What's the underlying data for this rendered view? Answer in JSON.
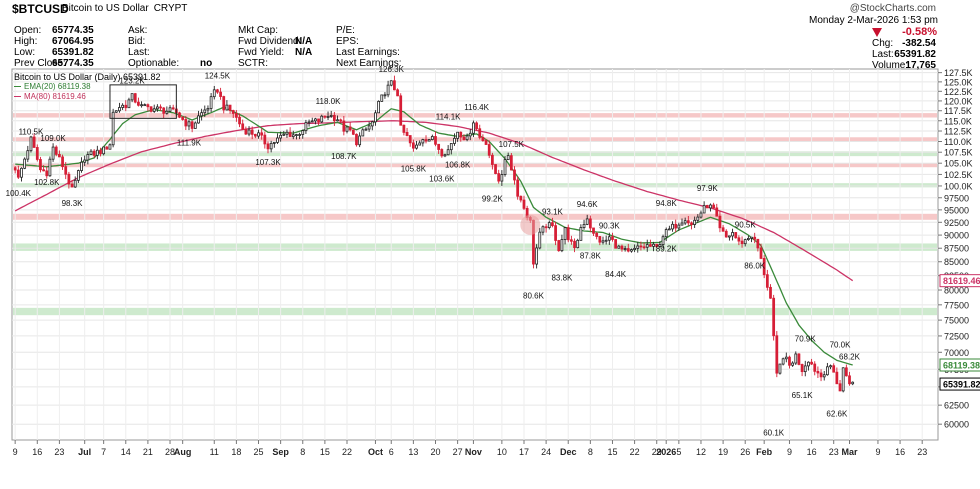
{
  "header": {
    "symbol": "$BTCUSD",
    "name": "Bitcoin to US Dollar",
    "exchange": "CRYPT",
    "watermark": "@StockCharts.com",
    "date": "Monday  2-Mar-2026  1:53 pm",
    "change_pct": "-0.58%",
    "col1": [
      {
        "label": "Open:",
        "value": "65774.35"
      },
      {
        "label": "High:",
        "value": "67064.95"
      },
      {
        "label": "Low:",
        "value": "65391.82"
      },
      {
        "label": "Prev Close:",
        "value": "65774.35"
      }
    ],
    "col2": [
      {
        "label": "Ask:",
        "value": ""
      },
      {
        "label": "Bid:",
        "value": ""
      },
      {
        "label": "Last:",
        "value": ""
      },
      {
        "label": "Optionable:",
        "value": "no"
      }
    ],
    "col3": [
      {
        "label": "Mkt Cap:",
        "value": ""
      },
      {
        "label": "Fwd Dividend:",
        "value": "N/A"
      },
      {
        "label": "Fwd Yield:",
        "value": "N/A"
      },
      {
        "label": "SCTR:",
        "value": ""
      }
    ],
    "col4": [
      {
        "label": "P/E:"
      },
      {
        "label": "EPS:"
      },
      {
        "label": "Last Earnings:"
      },
      {
        "label": "Next Earnings:"
      }
    ],
    "right": [
      {
        "label": "Chg:",
        "value": "-382.54"
      },
      {
        "label": "Last:",
        "value": "65391.82"
      },
      {
        "label": "Volume:",
        "value": "17,765"
      }
    ]
  },
  "legend": {
    "title": "Bitcoin to US Dollar (Daily) 65391.82",
    "ema": "EMA(20) 68119.38",
    "ma": "MA(80) 81619.46",
    "ema_color": "#3a8a3a",
    "ma_color": "#cc3366"
  },
  "chart_data": {
    "type": "candlestick",
    "title": "Bitcoin to US Dollar (Daily)",
    "ylim": [
      58000,
      128500
    ],
    "scale": "log",
    "y_ticks": [
      60000,
      62500,
      65000,
      67500,
      70000,
      72500,
      75000,
      77500,
      80000,
      82500,
      85000,
      87500,
      90000,
      92500,
      95000,
      97500,
      100000,
      102500,
      105000,
      107500,
      110000,
      112500,
      115000,
      117500,
      120000,
      122500,
      125000,
      127500
    ],
    "y_tick_labels": [
      "60000",
      "62500",
      "65000",
      "67500",
      "70000",
      "72500",
      "75000",
      "77500",
      "80000",
      "82500",
      "85000",
      "87500",
      "90000",
      "92500",
      "95000",
      "97500",
      "100.0K",
      "102.5K",
      "105.0K",
      "107.5K",
      "110.0K",
      "112.5K",
      "115.0K",
      "117.5K",
      "120.0K",
      "122.5K",
      "125.0K",
      "127.5K"
    ],
    "x_ticks": [
      {
        "label": "9",
        "bold": false,
        "d": 0
      },
      {
        "label": "16",
        "bold": false,
        "d": 7
      },
      {
        "label": "23",
        "bold": false,
        "d": 14
      },
      {
        "label": "Jul",
        "bold": true,
        "d": 22
      },
      {
        "label": "7",
        "bold": false,
        "d": 28
      },
      {
        "label": "14",
        "bold": false,
        "d": 35
      },
      {
        "label": "21",
        "bold": false,
        "d": 42
      },
      {
        "label": "28",
        "bold": false,
        "d": 49
      },
      {
        "label": "Aug",
        "bold": true,
        "d": 53
      },
      {
        "label": "11",
        "bold": false,
        "d": 63
      },
      {
        "label": "18",
        "bold": false,
        "d": 70
      },
      {
        "label": "25",
        "bold": false,
        "d": 77
      },
      {
        "label": "Sep",
        "bold": true,
        "d": 84
      },
      {
        "label": "8",
        "bold": false,
        "d": 91
      },
      {
        "label": "15",
        "bold": false,
        "d": 98
      },
      {
        "label": "22",
        "bold": false,
        "d": 105
      },
      {
        "label": "Oct",
        "bold": true,
        "d": 114
      },
      {
        "label": "6",
        "bold": false,
        "d": 119
      },
      {
        "label": "13",
        "bold": false,
        "d": 126
      },
      {
        "label": "20",
        "bold": false,
        "d": 133
      },
      {
        "label": "27",
        "bold": false,
        "d": 140
      },
      {
        "label": "Nov",
        "bold": true,
        "d": 145
      },
      {
        "label": "10",
        "bold": false,
        "d": 154
      },
      {
        "label": "17",
        "bold": false,
        "d": 161
      },
      {
        "label": "24",
        "bold": false,
        "d": 168
      },
      {
        "label": "Dec",
        "bold": true,
        "d": 175
      },
      {
        "label": "8",
        "bold": false,
        "d": 182
      },
      {
        "label": "15",
        "bold": false,
        "d": 189
      },
      {
        "label": "22",
        "bold": false,
        "d": 196
      },
      {
        "label": "29",
        "bold": false,
        "d": 203
      },
      {
        "label": "2026",
        "bold": true,
        "d": 206
      },
      {
        "label": "5",
        "bold": false,
        "d": 210
      },
      {
        "label": "12",
        "bold": false,
        "d": 217
      },
      {
        "label": "19",
        "bold": false,
        "d": 224
      },
      {
        "label": "26",
        "bold": false,
        "d": 231
      },
      {
        "label": "Feb",
        "bold": true,
        "d": 237
      },
      {
        "label": "9",
        "bold": false,
        "d": 245
      },
      {
        "label": "16",
        "bold": false,
        "d": 252
      },
      {
        "label": "23",
        "bold": false,
        "d": 259
      },
      {
        "label": "Mar",
        "bold": true,
        "d": 264
      },
      {
        "label": "9",
        "bold": false,
        "d": 273
      },
      {
        "label": "16",
        "bold": false,
        "d": 280
      },
      {
        "label": "23",
        "bold": false,
        "d": 287
      }
    ],
    "bands": [
      {
        "low": 115800,
        "high": 116900,
        "color": "#f5c2c2"
      },
      {
        "low": 110000,
        "high": 111000,
        "color": "#f5c2c2"
      },
      {
        "low": 106600,
        "high": 107700,
        "color": "#c9e8c9"
      },
      {
        "low": 104100,
        "high": 105000,
        "color": "#f5c2c2"
      },
      {
        "low": 99700,
        "high": 100600,
        "color": "#c9e8c9"
      },
      {
        "low": 93000,
        "high": 94200,
        "color": "#f5c2c2"
      },
      {
        "low": 87000,
        "high": 88400,
        "color": "#c9e8c9"
      },
      {
        "low": 75800,
        "high": 77000,
        "color": "#c9e8c9"
      }
    ],
    "annotations": [
      {
        "text": "100.4K",
        "d": 1,
        "v": 100400,
        "pos": "below"
      },
      {
        "text": "110.5K",
        "d": 5,
        "v": 110500,
        "pos": "above"
      },
      {
        "text": "109.0K",
        "d": 12,
        "v": 109000,
        "pos": "above"
      },
      {
        "text": "102.8K",
        "d": 10,
        "v": 102800,
        "pos": "below"
      },
      {
        "text": "98.3K",
        "d": 18,
        "v": 98300,
        "pos": "below"
      },
      {
        "text": "123.2K",
        "d": 37,
        "v": 123200,
        "pos": "above"
      },
      {
        "text": "124.5K",
        "d": 64,
        "v": 124500,
        "pos": "above"
      },
      {
        "text": "111.9K",
        "d": 55,
        "v": 111900,
        "pos": "below"
      },
      {
        "text": "107.3K",
        "d": 80,
        "v": 107300,
        "pos": "below"
      },
      {
        "text": "118.0K",
        "d": 99,
        "v": 118000,
        "pos": "above"
      },
      {
        "text": "108.7K",
        "d": 104,
        "v": 108700,
        "pos": "below"
      },
      {
        "text": "126.3K",
        "d": 119,
        "v": 126300,
        "pos": "above"
      },
      {
        "text": "105.8K",
        "d": 126,
        "v": 105800,
        "pos": "below"
      },
      {
        "text": "114.1K",
        "d": 137,
        "v": 114100,
        "pos": "above"
      },
      {
        "text": "116.4K",
        "d": 146,
        "v": 116400,
        "pos": "above"
      },
      {
        "text": "106.8K",
        "d": 140,
        "v": 106800,
        "pos": "below"
      },
      {
        "text": "103.6K",
        "d": 135,
        "v": 103600,
        "pos": "below"
      },
      {
        "text": "107.5K",
        "d": 157,
        "v": 107500,
        "pos": "above"
      },
      {
        "text": "99.2K",
        "d": 151,
        "v": 99200,
        "pos": "below"
      },
      {
        "text": "93.1K",
        "d": 170,
        "v": 93100,
        "pos": "above"
      },
      {
        "text": "94.6K",
        "d": 181,
        "v": 94600,
        "pos": "above"
      },
      {
        "text": "90.3K",
        "d": 188,
        "v": 90300,
        "pos": "above"
      },
      {
        "text": "87.8K",
        "d": 182,
        "v": 87800,
        "pos": "below"
      },
      {
        "text": "83.8K",
        "d": 173,
        "v": 83800,
        "pos": "below"
      },
      {
        "text": "84.4K",
        "d": 190,
        "v": 84400,
        "pos": "below"
      },
      {
        "text": "80.6K",
        "d": 164,
        "v": 80600,
        "pos": "below"
      },
      {
        "text": "94.8K",
        "d": 206,
        "v": 94800,
        "pos": "above"
      },
      {
        "text": "97.9K",
        "d": 219,
        "v": 97900,
        "pos": "above"
      },
      {
        "text": "89.2K",
        "d": 206,
        "v": 89200,
        "pos": "below"
      },
      {
        "text": "90.5K",
        "d": 231,
        "v": 90500,
        "pos": "above"
      },
      {
        "text": "86.0K",
        "d": 234,
        "v": 86000,
        "pos": "below"
      },
      {
        "text": "70.9K",
        "d": 250,
        "v": 70900,
        "pos": "above"
      },
      {
        "text": "70.0K",
        "d": 261,
        "v": 70000,
        "pos": "above"
      },
      {
        "text": "68.2K",
        "d": 264,
        "v": 68200,
        "pos": "above"
      },
      {
        "text": "65.1K",
        "d": 249,
        "v": 65100,
        "pos": "below"
      },
      {
        "text": "62.6K",
        "d": 260,
        "v": 62600,
        "pos": "below"
      },
      {
        "text": "60.1K",
        "d": 240,
        "v": 60100,
        "pos": "below"
      }
    ],
    "axis_tags": [
      {
        "text": "81619.46",
        "v": 81619.46,
        "color": "#cc3366"
      },
      {
        "text": "68119.38",
        "v": 68119.38,
        "color": "#3a8a3a"
      },
      {
        "text": "65391.82",
        "v": 65391.82,
        "color": "#000000"
      }
    ],
    "anchors": [
      [
        0,
        104000
      ],
      [
        1,
        101500
      ],
      [
        3,
        106000
      ],
      [
        5,
        110500
      ],
      [
        8,
        103500
      ],
      [
        10,
        103000
      ],
      [
        12,
        108500
      ],
      [
        15,
        104500
      ],
      [
        18,
        99000
      ],
      [
        22,
        106500
      ],
      [
        26,
        107500
      ],
      [
        28,
        108000
      ],
      [
        30,
        109500
      ],
      [
        31,
        117000
      ],
      [
        33,
        118500
      ],
      [
        35,
        119000
      ],
      [
        37,
        121000
      ],
      [
        40,
        118500
      ],
      [
        44,
        118000
      ],
      [
        48,
        117500
      ],
      [
        51,
        117000
      ],
      [
        54,
        114500
      ],
      [
        56,
        113500
      ],
      [
        58,
        116000
      ],
      [
        61,
        118500
      ],
      [
        63,
        122000
      ],
      [
        64,
        123000
      ],
      [
        66,
        118500
      ],
      [
        69,
        117000
      ],
      [
        72,
        113000
      ],
      [
        75,
        112000
      ],
      [
        77,
        111500
      ],
      [
        80,
        109000
      ],
      [
        83,
        110500
      ],
      [
        86,
        112000
      ],
      [
        89,
        111500
      ],
      [
        93,
        114500
      ],
      [
        96,
        115000
      ],
      [
        99,
        116500
      ],
      [
        102,
        115500
      ],
      [
        104,
        113000
      ],
      [
        106,
        112500
      ],
      [
        108,
        110000
      ],
      [
        110,
        112000
      ],
      [
        113,
        114500
      ],
      [
        115,
        119000
      ],
      [
        117,
        122500
      ],
      [
        119,
        124500
      ],
      [
        121,
        122000
      ],
      [
        122,
        113000
      ],
      [
        124,
        111000
      ],
      [
        126,
        108000
      ],
      [
        129,
        111000
      ],
      [
        132,
        110500
      ],
      [
        135,
        107500
      ],
      [
        137,
        108000
      ],
      [
        140,
        112500
      ],
      [
        143,
        110500
      ],
      [
        145,
        115000
      ],
      [
        147,
        111000
      ],
      [
        149,
        110000
      ],
      [
        151,
        104000
      ],
      [
        153,
        101500
      ],
      [
        154,
        103000
      ],
      [
        156,
        107000
      ],
      [
        157,
        104000
      ],
      [
        159,
        98500
      ],
      [
        161,
        95500
      ],
      [
        163,
        92500
      ],
      [
        164,
        85000
      ],
      [
        166,
        90000
      ],
      [
        168,
        92000
      ],
      [
        170,
        91500
      ],
      [
        172,
        87500
      ],
      [
        174,
        91000
      ],
      [
        177,
        87000
      ],
      [
        179,
        91500
      ],
      [
        181,
        93500
      ],
      [
        183,
        90000
      ],
      [
        186,
        88500
      ],
      [
        188,
        89500
      ],
      [
        191,
        87500
      ],
      [
        194,
        86500
      ],
      [
        197,
        87500
      ],
      [
        200,
        88000
      ],
      [
        203,
        87500
      ],
      [
        205,
        90000
      ],
      [
        207,
        91000
      ],
      [
        210,
        92500
      ],
      [
        212,
        93500
      ],
      [
        214,
        92000
      ],
      [
        217,
        94500
      ],
      [
        219,
        96000
      ],
      [
        221,
        95000
      ],
      [
        223,
        91000
      ],
      [
        225,
        89500
      ],
      [
        227,
        90500
      ],
      [
        229,
        88500
      ],
      [
        231,
        89000
      ],
      [
        233,
        90000
      ],
      [
        235,
        87500
      ],
      [
        237,
        83000
      ],
      [
        239,
        78500
      ],
      [
        240,
        72000
      ],
      [
        241,
        66500
      ],
      [
        243,
        69500
      ],
      [
        245,
        68000
      ],
      [
        247,
        69500
      ],
      [
        249,
        67500
      ],
      [
        251,
        69000
      ],
      [
        253,
        67500
      ],
      [
        255,
        66500
      ],
      [
        257,
        68000
      ],
      [
        259,
        67000
      ],
      [
        261,
        64500
      ],
      [
        262,
        67500
      ],
      [
        264,
        65800
      ],
      [
        265,
        65400
      ]
    ],
    "ema20": [
      [
        0,
        104800
      ],
      [
        10,
        104200
      ],
      [
        20,
        105000
      ],
      [
        25,
        106200
      ],
      [
        30,
        110500
      ],
      [
        34,
        114300
      ],
      [
        38,
        116500
      ],
      [
        44,
        117800
      ],
      [
        50,
        117000
      ],
      [
        56,
        115200
      ],
      [
        62,
        117000
      ],
      [
        66,
        118400
      ],
      [
        72,
        116200
      ],
      [
        80,
        112200
      ],
      [
        88,
        112000
      ],
      [
        96,
        113800
      ],
      [
        102,
        114600
      ],
      [
        108,
        112800
      ],
      [
        114,
        114800
      ],
      [
        119,
        118000
      ],
      [
        123,
        117200
      ],
      [
        128,
        114000
      ],
      [
        134,
        112000
      ],
      [
        140,
        111200
      ],
      [
        146,
        111800
      ],
      [
        150,
        110000
      ],
      [
        155,
        106000
      ],
      [
        160,
        101000
      ],
      [
        164,
        95500
      ],
      [
        168,
        93500
      ],
      [
        174,
        91500
      ],
      [
        180,
        90800
      ],
      [
        186,
        90500
      ],
      [
        192,
        89200
      ],
      [
        198,
        88500
      ],
      [
        204,
        88600
      ],
      [
        210,
        91000
      ],
      [
        216,
        92500
      ],
      [
        220,
        93500
      ],
      [
        226,
        92200
      ],
      [
        232,
        90000
      ],
      [
        236,
        88000
      ],
      [
        240,
        82800
      ],
      [
        244,
        77800
      ],
      [
        248,
        74200
      ],
      [
        252,
        71800
      ],
      [
        256,
        70000
      ],
      [
        260,
        68800
      ],
      [
        265,
        68120
      ]
    ],
    "ma80": [
      [
        0,
        94800
      ],
      [
        10,
        98200
      ],
      [
        20,
        101800
      ],
      [
        30,
        104800
      ],
      [
        40,
        107600
      ],
      [
        50,
        109500
      ],
      [
        60,
        111200
      ],
      [
        70,
        112600
      ],
      [
        80,
        113800
      ],
      [
        90,
        114300
      ],
      [
        100,
        114500
      ],
      [
        110,
        114800
      ],
      [
        120,
        115000
      ],
      [
        130,
        114600
      ],
      [
        140,
        113600
      ],
      [
        150,
        112000
      ],
      [
        160,
        109500
      ],
      [
        170,
        106300
      ],
      [
        180,
        103500
      ],
      [
        190,
        101000
      ],
      [
        200,
        98800
      ],
      [
        210,
        97000
      ],
      [
        220,
        95400
      ],
      [
        230,
        93300
      ],
      [
        240,
        90500
      ],
      [
        250,
        87000
      ],
      [
        260,
        83500
      ],
      [
        265,
        81620
      ]
    ]
  }
}
